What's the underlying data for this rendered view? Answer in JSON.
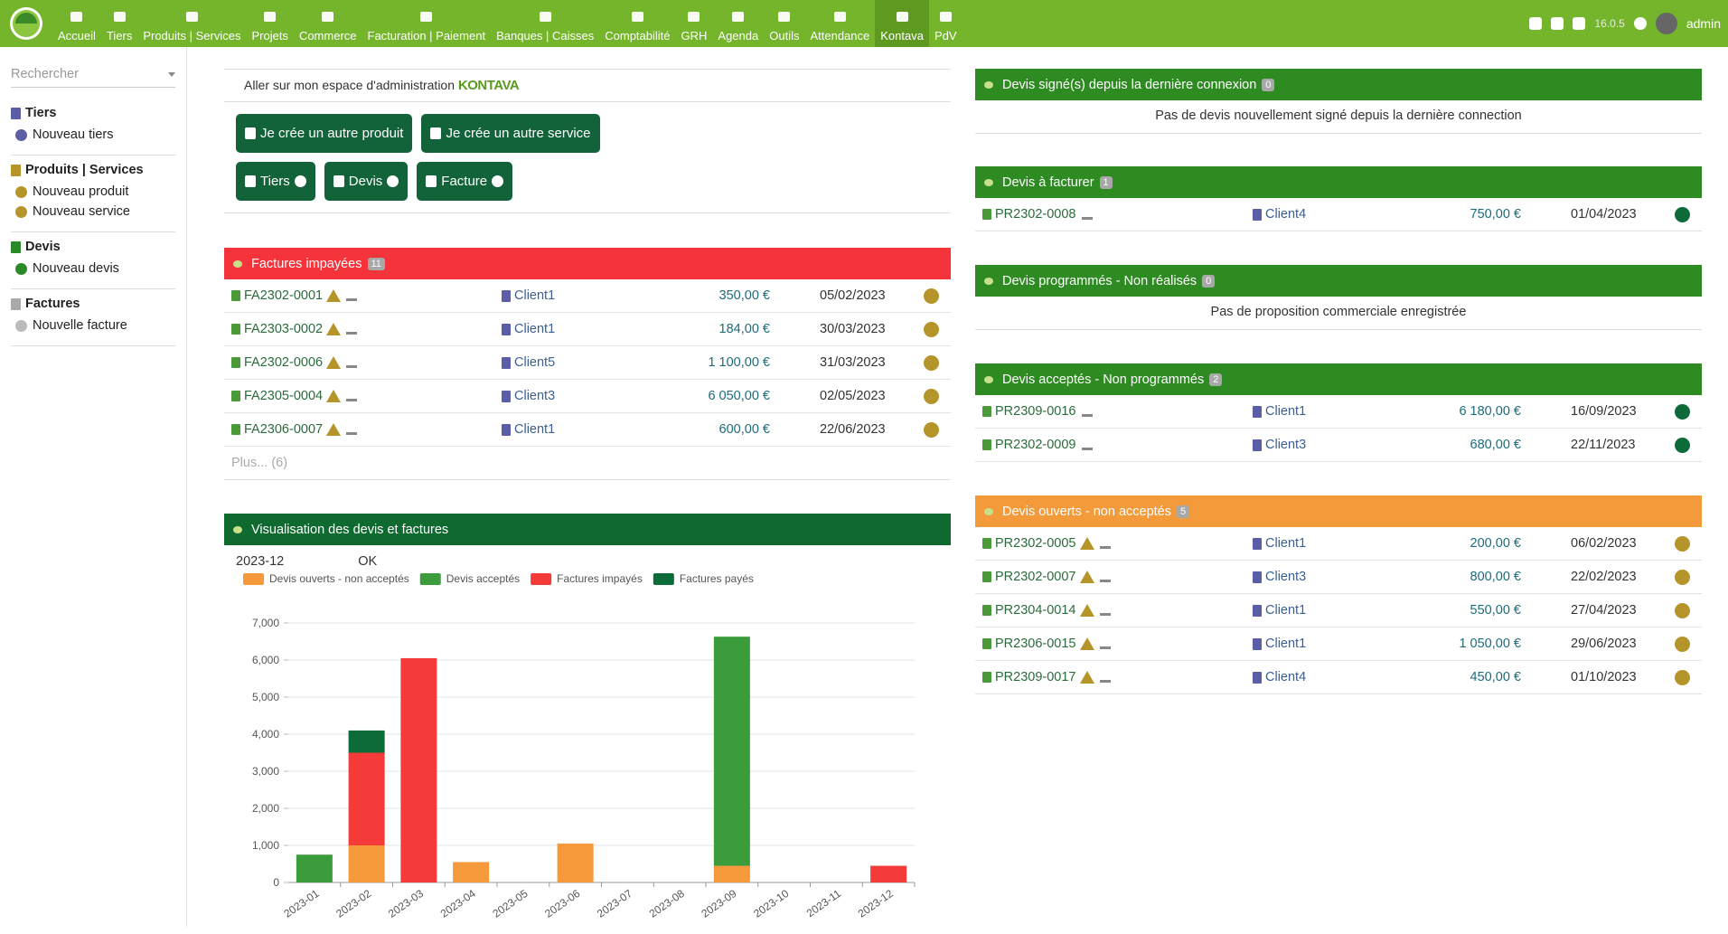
{
  "topbar": {
    "menu": [
      "Accueil",
      "Tiers",
      "Produits | Services",
      "Projets",
      "Commerce",
      "Facturation | Paiement",
      "Banques | Caisses",
      "Comptabilité",
      "GRH",
      "Agenda",
      "Outils",
      "Attendance",
      "Kontava",
      "PdV"
    ],
    "version": "16.0.5",
    "user": "admin"
  },
  "sidebar": {
    "search": "Rechercher",
    "sections": [
      {
        "title": "Tiers",
        "items": [
          "Nouveau tiers"
        ]
      },
      {
        "title": "Produits | Services",
        "items": [
          "Nouveau produit",
          "Nouveau service"
        ]
      },
      {
        "title": "Devis",
        "items": [
          "Nouveau devis"
        ]
      },
      {
        "title": "Factures",
        "items": [
          "Nouvelle facture"
        ]
      }
    ]
  },
  "main": {
    "admin_link": "Aller sur mon espace d'administration",
    "brand": "KONTAVA",
    "buttons": [
      "Je crée un autre produit",
      "Je crée un autre service"
    ],
    "small_buttons": [
      "Tiers",
      "Devis",
      "Facture"
    ]
  },
  "unpaid": {
    "title": "Factures impayées",
    "count": 11,
    "color": "#f4343a",
    "rows": [
      {
        "ref": "FA2302-0001",
        "client": "Client1",
        "amount": "350,00 €",
        "date": "05/02/2023"
      },
      {
        "ref": "FA2303-0002",
        "client": "Client1",
        "amount": "184,00 €",
        "date": "30/03/2023"
      },
      {
        "ref": "FA2302-0006",
        "client": "Client5",
        "amount": "1 100,00 €",
        "date": "31/03/2023"
      },
      {
        "ref": "FA2305-0004",
        "client": "Client3",
        "amount": "6 050,00 €",
        "date": "02/05/2023"
      },
      {
        "ref": "FA2306-0007",
        "client": "Client1",
        "amount": "600,00 €",
        "date": "22/06/2023"
      }
    ],
    "more": "Plus... (6)"
  },
  "chart_panel": {
    "title": "Visualisation des devis et factures",
    "color": "#0f6a2f",
    "period": "2023-12",
    "ok": "OK"
  },
  "chart_data": {
    "type": "stacked_bar",
    "categories": [
      "2023-01",
      "2023-02",
      "2023-03",
      "2023-04",
      "2023-05",
      "2023-06",
      "2023-07",
      "2023-08",
      "2023-09",
      "2023-10",
      "2023-11",
      "2023-12"
    ],
    "series": [
      {
        "name": "Devis ouverts - non acceptés",
        "color": "#f5993a",
        "values": [
          0,
          1000,
          0,
          550,
          0,
          1050,
          0,
          0,
          450,
          0,
          0,
          0
        ]
      },
      {
        "name": "Devis acceptés",
        "color": "#3a9c3a",
        "values": [
          750,
          0,
          0,
          0,
          0,
          0,
          0,
          0,
          6180,
          0,
          0,
          0
        ]
      },
      {
        "name": "Factures impayés",
        "color": "#f53a3a",
        "values": [
          0,
          2500,
          6050,
          0,
          0,
          0,
          0,
          0,
          0,
          0,
          0,
          450
        ]
      },
      {
        "name": "Factures payés",
        "color": "#0d6b3a",
        "values": [
          0,
          600,
          0,
          0,
          0,
          0,
          0,
          0,
          0,
          0,
          0,
          0
        ]
      }
    ],
    "ylim": [
      0,
      7000
    ],
    "yticks": [
      0,
      {
        "value": 1000,
        "label": "1,000"
      },
      {
        "value": 2000,
        "label": "2,000"
      },
      {
        "value": 3000,
        "label": "3,000"
      },
      {
        "value": 4000,
        "label": "4,000"
      },
      {
        "value": 5000,
        "label": "5,000"
      },
      {
        "value": 6000,
        "label": "6,000"
      },
      {
        "value": 7000,
        "label": "7,000"
      }
    ],
    "grid": true
  },
  "panels": [
    {
      "title": "Devis signé(s) depuis la dernière connexion",
      "count": 0,
      "color": "#2e8b22",
      "empty": "Pas de devis nouvellement signé depuis la dernière connection"
    },
    {
      "title": "Devis à facturer",
      "count": 1,
      "color": "#2e8b22",
      "dot": "#0d6b3a",
      "rows": [
        {
          "ref": "PR2302-0008",
          "client": "Client4",
          "amount": "750,00 €",
          "date": "01/04/2023"
        }
      ]
    },
    {
      "title": "Devis programmés - Non réalisés",
      "count": 0,
      "color": "#2e8b22",
      "empty": "Pas de proposition commerciale enregistrée"
    },
    {
      "title": "Devis acceptés - Non programmés",
      "count": 2,
      "color": "#2e8b22",
      "dot": "#0d6b3a",
      "rows": [
        {
          "ref": "PR2309-0016",
          "client": "Client1",
          "amount": "6 180,00 €",
          "date": "16/09/2023"
        },
        {
          "ref": "PR2302-0009",
          "client": "Client3",
          "amount": "680,00 €",
          "date": "22/11/2023"
        }
      ]
    },
    {
      "title": "Devis ouverts - non acceptés",
      "count": 5,
      "color": "#f39a3a",
      "dot": "#b5952a",
      "warn": true,
      "rows": [
        {
          "ref": "PR2302-0005",
          "client": "Client1",
          "amount": "200,00 €",
          "date": "06/02/2023"
        },
        {
          "ref": "PR2302-0007",
          "client": "Client3",
          "amount": "800,00 €",
          "date": "22/02/2023"
        },
        {
          "ref": "PR2304-0014",
          "client": "Client1",
          "amount": "550,00 €",
          "date": "27/04/2023"
        },
        {
          "ref": "PR2306-0015",
          "client": "Client1",
          "amount": "1 050,00 €",
          "date": "29/06/2023"
        },
        {
          "ref": "PR2309-0017",
          "client": "Client4",
          "amount": "450,00 €",
          "date": "01/10/2023"
        }
      ]
    }
  ]
}
